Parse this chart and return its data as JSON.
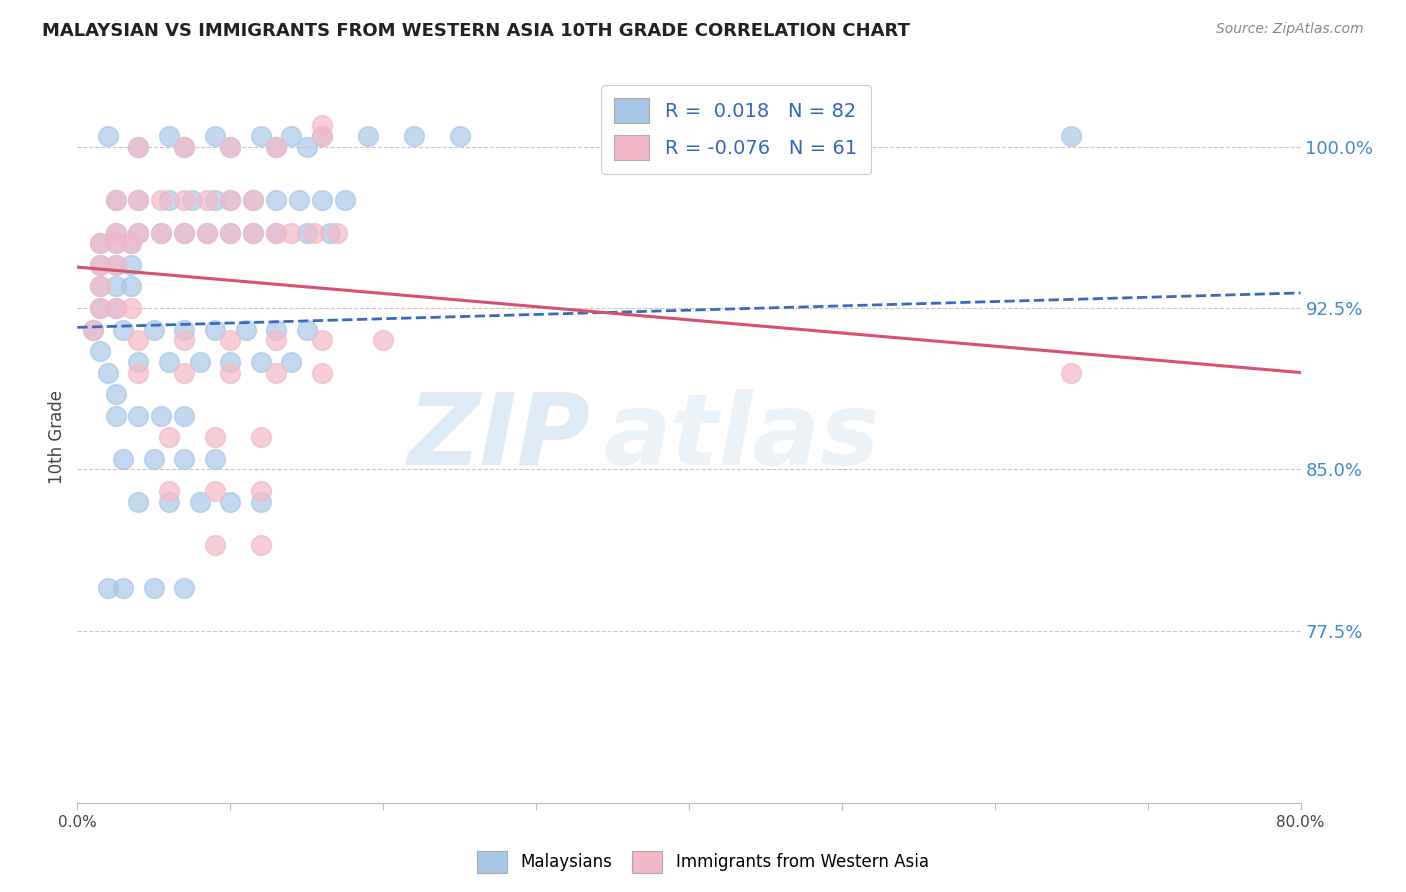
{
  "title": "MALAYSIAN VS IMMIGRANTS FROM WESTERN ASIA 10TH GRADE CORRELATION CHART",
  "source": "Source: ZipAtlas.com",
  "ylabel": "10th Grade",
  "ytick_labels": [
    "100.0%",
    "92.5%",
    "85.0%",
    "77.5%"
  ],
  "ytick_values": [
    1.0,
    0.925,
    0.85,
    0.775
  ],
  "xlim": [
    0.0,
    0.8
  ],
  "ylim": [
    0.695,
    1.035
  ],
  "blue_color": "#a8c8e8",
  "pink_color": "#f4b8c8",
  "blue_line_color": "#3a6abf",
  "pink_line_color": "#d85070",
  "legend_r1": "R =  0.018",
  "legend_n1": "N = 82",
  "legend_r2": "R = -0.076",
  "legend_n2": "N = 61",
  "blue_scatter_x": [
    0.02,
    0.06,
    0.09,
    0.12,
    0.14,
    0.16,
    0.19,
    0.22,
    0.25,
    0.65,
    0.04,
    0.07,
    0.1,
    0.13,
    0.15,
    0.025,
    0.04,
    0.06,
    0.075,
    0.09,
    0.1,
    0.115,
    0.13,
    0.145,
    0.16,
    0.175,
    0.025,
    0.04,
    0.055,
    0.07,
    0.085,
    0.1,
    0.115,
    0.13,
    0.15,
    0.165,
    0.015,
    0.025,
    0.035,
    0.015,
    0.025,
    0.035,
    0.015,
    0.025,
    0.035,
    0.015,
    0.025,
    0.01,
    0.015,
    0.02,
    0.025,
    0.03,
    0.05,
    0.07,
    0.09,
    0.11,
    0.13,
    0.15,
    0.04,
    0.06,
    0.08,
    0.1,
    0.12,
    0.14,
    0.025,
    0.04,
    0.055,
    0.07,
    0.03,
    0.05,
    0.07,
    0.09,
    0.04,
    0.06,
    0.08,
    0.1,
    0.12,
    0.02,
    0.03,
    0.05,
    0.07
  ],
  "blue_scatter_y": [
    1.005,
    1.005,
    1.005,
    1.005,
    1.005,
    1.005,
    1.005,
    1.005,
    1.005,
    1.005,
    1.0,
    1.0,
    1.0,
    1.0,
    1.0,
    0.975,
    0.975,
    0.975,
    0.975,
    0.975,
    0.975,
    0.975,
    0.975,
    0.975,
    0.975,
    0.975,
    0.96,
    0.96,
    0.96,
    0.96,
    0.96,
    0.96,
    0.96,
    0.96,
    0.96,
    0.96,
    0.955,
    0.955,
    0.955,
    0.945,
    0.945,
    0.945,
    0.935,
    0.935,
    0.935,
    0.925,
    0.925,
    0.915,
    0.905,
    0.895,
    0.885,
    0.915,
    0.915,
    0.915,
    0.915,
    0.915,
    0.915,
    0.915,
    0.9,
    0.9,
    0.9,
    0.9,
    0.9,
    0.9,
    0.875,
    0.875,
    0.875,
    0.875,
    0.855,
    0.855,
    0.855,
    0.855,
    0.835,
    0.835,
    0.835,
    0.835,
    0.835,
    0.795,
    0.795,
    0.795,
    0.795
  ],
  "blue_trend_x": [
    0.0,
    0.8
  ],
  "blue_trend_y": [
    0.916,
    0.932
  ],
  "pink_scatter_x": [
    0.16,
    0.16,
    0.04,
    0.07,
    0.1,
    0.13,
    0.025,
    0.04,
    0.055,
    0.07,
    0.085,
    0.1,
    0.115,
    0.025,
    0.04,
    0.055,
    0.07,
    0.085,
    0.1,
    0.115,
    0.13,
    0.14,
    0.155,
    0.17,
    0.015,
    0.025,
    0.035,
    0.015,
    0.025,
    0.015,
    0.015,
    0.025,
    0.035,
    0.01,
    0.04,
    0.07,
    0.1,
    0.13,
    0.16,
    0.2,
    0.04,
    0.07,
    0.1,
    0.13,
    0.16,
    0.06,
    0.09,
    0.12,
    0.06,
    0.09,
    0.12,
    0.09,
    0.12,
    0.65
  ],
  "pink_scatter_y": [
    1.01,
    1.005,
    1.0,
    1.0,
    1.0,
    1.0,
    0.975,
    0.975,
    0.975,
    0.975,
    0.975,
    0.975,
    0.975,
    0.96,
    0.96,
    0.96,
    0.96,
    0.96,
    0.96,
    0.96,
    0.96,
    0.96,
    0.96,
    0.96,
    0.955,
    0.955,
    0.955,
    0.945,
    0.945,
    0.935,
    0.925,
    0.925,
    0.925,
    0.915,
    0.91,
    0.91,
    0.91,
    0.91,
    0.91,
    0.91,
    0.895,
    0.895,
    0.895,
    0.895,
    0.895,
    0.865,
    0.865,
    0.865,
    0.84,
    0.84,
    0.84,
    0.815,
    0.815,
    0.895
  ],
  "pink_trend_x": [
    0.0,
    0.8
  ],
  "pink_trend_y": [
    0.944,
    0.895
  ],
  "watermark_zip": "ZIP",
  "watermark_atlas": "atlas",
  "background_color": "#ffffff",
  "grid_color": "#c8c8c8"
}
